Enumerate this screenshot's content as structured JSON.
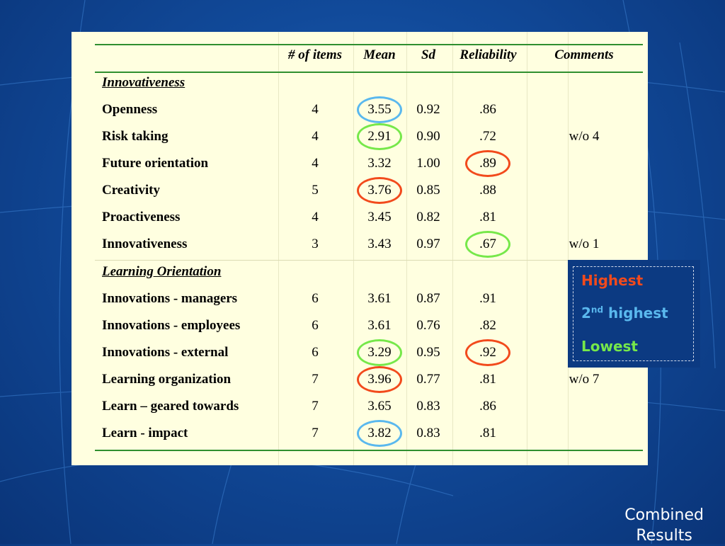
{
  "table": {
    "headers": {
      "items": "# of items",
      "mean": "Mean",
      "sd": "Sd",
      "reliability": "Reliability",
      "comments": "Comments"
    },
    "sections": [
      {
        "title": "Innovativeness",
        "rows": [
          {
            "name": "Openness",
            "items": "4",
            "mean": "3.55",
            "sd": "0.92",
            "reliability": ".86",
            "comment": ""
          },
          {
            "name": "Risk taking",
            "items": "4",
            "mean": "2.91",
            "sd": "0.90",
            "reliability": ".72",
            "comment": "w/o 4"
          },
          {
            "name": "Future orientation",
            "items": "4",
            "mean": "3.32",
            "sd": "1.00",
            "reliability": ".89",
            "comment": ""
          },
          {
            "name": "Creativity",
            "items": "5",
            "mean": "3.76",
            "sd": "0.85",
            "reliability": ".88",
            "comment": ""
          },
          {
            "name": "Proactiveness",
            "items": "4",
            "mean": "3.45",
            "sd": "0.82",
            "reliability": ".81",
            "comment": ""
          },
          {
            "name": "Innovativeness",
            "items": "3",
            "mean": "3.43",
            "sd": "0.97",
            "reliability": ".67",
            "comment": "w/o 1"
          }
        ]
      },
      {
        "title": "Learning Orientation",
        "rows": [
          {
            "name": "Innovations - managers",
            "items": "6",
            "mean": "3.61",
            "sd": "0.87",
            "reliability": ".91",
            "comment": ""
          },
          {
            "name": "Innovations - employees",
            "items": "6",
            "mean": "3.61",
            "sd": "0.76",
            "reliability": ".82",
            "comment": ""
          },
          {
            "name": "Innovations - external",
            "items": "6",
            "mean": "3.29",
            "sd": "0.95",
            "reliability": ".92",
            "comment": ""
          },
          {
            "name": "Learning organization",
            "items": "7",
            "mean": "3.96",
            "sd": "0.77",
            "reliability": ".81",
            "comment": "w/o 7"
          },
          {
            "name": "Learn – geared towards",
            "items": "7",
            "mean": "3.65",
            "sd": "0.83",
            "reliability": ".86",
            "comment": ""
          },
          {
            "name": "Learn - impact",
            "items": "7",
            "mean": "3.82",
            "sd": "0.83",
            "reliability": ".81",
            "comment": ""
          }
        ]
      }
    ]
  },
  "highlights": [
    {
      "row": "Openness",
      "column": "mean",
      "rank": "second"
    },
    {
      "row": "Risk taking",
      "column": "mean",
      "rank": "lowest"
    },
    {
      "row": "Future orientation",
      "column": "reliability",
      "rank": "highest"
    },
    {
      "row": "Creativity",
      "column": "mean",
      "rank": "highest"
    },
    {
      "row": "Innovativeness",
      "column": "reliability",
      "rank": "lowest"
    },
    {
      "row": "Innovations - external",
      "column": "mean",
      "rank": "lowest"
    },
    {
      "row": "Innovations - external",
      "column": "reliability",
      "rank": "highest"
    },
    {
      "row": "Learning organization",
      "column": "mean",
      "rank": "highest"
    },
    {
      "row": "Learn - impact",
      "column": "mean",
      "rank": "second"
    }
  ],
  "legend": {
    "highest": "Highest",
    "second_number": "2",
    "second_suffix": "nd",
    "second_word": "highest",
    "lowest": "Lowest"
  },
  "caption": {
    "line1": "Combined",
    "line2": "Results"
  },
  "colors": {
    "highest": "#f24a1c",
    "second": "#5ab8ee",
    "lowest": "#76e84a",
    "panel": "#ffffe0",
    "rule": "#2f8f2f"
  }
}
